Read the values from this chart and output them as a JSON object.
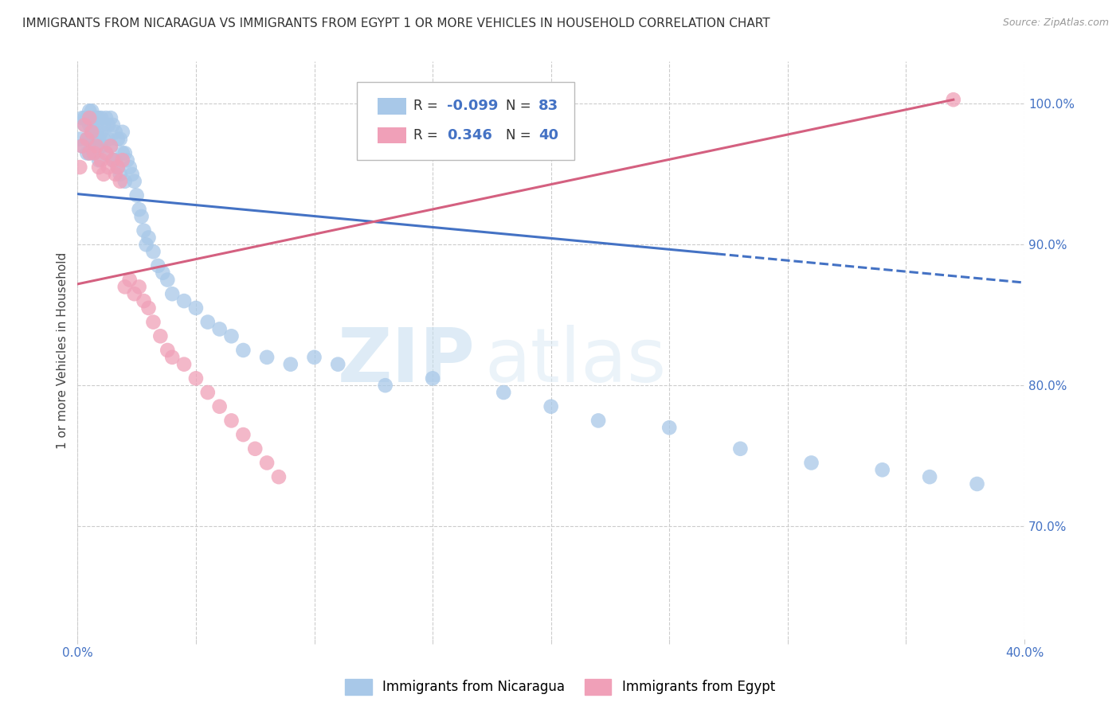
{
  "title": "IMMIGRANTS FROM NICARAGUA VS IMMIGRANTS FROM EGYPT 1 OR MORE VEHICLES IN HOUSEHOLD CORRELATION CHART",
  "source": "Source: ZipAtlas.com",
  "ylabel": "1 or more Vehicles in Household",
  "xlim": [
    0.0,
    0.4
  ],
  "ylim": [
    0.62,
    1.03
  ],
  "ytick_vals": [
    0.7,
    0.8,
    0.9,
    1.0
  ],
  "yticklabels": [
    "70.0%",
    "80.0%",
    "90.0%",
    "100.0%"
  ],
  "xtick_vals": [
    0.0,
    0.05,
    0.1,
    0.15,
    0.2,
    0.25,
    0.3,
    0.35,
    0.4
  ],
  "xticklabels": [
    "0.0%",
    "",
    "",
    "",
    "",
    "",
    "",
    "",
    "40.0%"
  ],
  "nicaragua_R": -0.099,
  "nicaragua_N": 83,
  "egypt_R": 0.346,
  "egypt_N": 40,
  "nicaragua_color": "#a8c8e8",
  "egypt_color": "#f0a0b8",
  "nicaragua_line_color": "#4472c4",
  "egypt_line_color": "#d46080",
  "legend_label_nicaragua": "Immigrants from Nicaragua",
  "legend_label_egypt": "Immigrants from Egypt",
  "watermark_zip": "ZIP",
  "watermark_atlas": "atlas",
  "nicaragua_x": [
    0.001,
    0.002,
    0.002,
    0.003,
    0.003,
    0.004,
    0.004,
    0.004,
    0.005,
    0.005,
    0.005,
    0.005,
    0.006,
    0.006,
    0.006,
    0.007,
    0.007,
    0.007,
    0.008,
    0.008,
    0.008,
    0.009,
    0.009,
    0.009,
    0.01,
    0.01,
    0.01,
    0.011,
    0.011,
    0.012,
    0.012,
    0.013,
    0.013,
    0.014,
    0.014,
    0.015,
    0.015,
    0.016,
    0.016,
    0.017,
    0.017,
    0.018,
    0.018,
    0.019,
    0.019,
    0.02,
    0.02,
    0.021,
    0.022,
    0.023,
    0.024,
    0.025,
    0.026,
    0.027,
    0.028,
    0.029,
    0.03,
    0.032,
    0.034,
    0.036,
    0.038,
    0.04,
    0.045,
    0.05,
    0.055,
    0.06,
    0.065,
    0.07,
    0.08,
    0.09,
    0.1,
    0.11,
    0.13,
    0.15,
    0.18,
    0.2,
    0.22,
    0.25,
    0.28,
    0.31,
    0.34,
    0.36,
    0.38
  ],
  "nicaragua_y": [
    0.975,
    0.99,
    0.97,
    0.99,
    0.985,
    0.99,
    0.975,
    0.965,
    0.995,
    0.985,
    0.975,
    0.965,
    0.995,
    0.985,
    0.975,
    0.99,
    0.98,
    0.965,
    0.99,
    0.98,
    0.97,
    0.99,
    0.975,
    0.96,
    0.99,
    0.98,
    0.97,
    0.985,
    0.975,
    0.99,
    0.965,
    0.985,
    0.975,
    0.99,
    0.97,
    0.985,
    0.96,
    0.98,
    0.96,
    0.975,
    0.955,
    0.975,
    0.95,
    0.98,
    0.965,
    0.965,
    0.945,
    0.96,
    0.955,
    0.95,
    0.945,
    0.935,
    0.925,
    0.92,
    0.91,
    0.9,
    0.905,
    0.895,
    0.885,
    0.88,
    0.875,
    0.865,
    0.86,
    0.855,
    0.845,
    0.84,
    0.835,
    0.825,
    0.82,
    0.815,
    0.82,
    0.815,
    0.8,
    0.805,
    0.795,
    0.785,
    0.775,
    0.77,
    0.755,
    0.745,
    0.74,
    0.735,
    0.73
  ],
  "egypt_x": [
    0.001,
    0.002,
    0.003,
    0.004,
    0.005,
    0.005,
    0.006,
    0.007,
    0.008,
    0.009,
    0.01,
    0.011,
    0.012,
    0.013,
    0.014,
    0.015,
    0.016,
    0.017,
    0.018,
    0.019,
    0.02,
    0.022,
    0.024,
    0.026,
    0.028,
    0.03,
    0.032,
    0.035,
    0.038,
    0.04,
    0.045,
    0.05,
    0.055,
    0.06,
    0.065,
    0.07,
    0.075,
    0.08,
    0.085,
    0.37
  ],
  "egypt_y": [
    0.955,
    0.97,
    0.985,
    0.975,
    0.99,
    0.965,
    0.98,
    0.965,
    0.97,
    0.955,
    0.96,
    0.95,
    0.965,
    0.955,
    0.97,
    0.96,
    0.95,
    0.955,
    0.945,
    0.96,
    0.87,
    0.875,
    0.865,
    0.87,
    0.86,
    0.855,
    0.845,
    0.835,
    0.825,
    0.82,
    0.815,
    0.805,
    0.795,
    0.785,
    0.775,
    0.765,
    0.755,
    0.745,
    0.735,
    1.003
  ],
  "nic_line_x0": 0.0,
  "nic_line_x_solid_end": 0.27,
  "nic_line_x1": 0.4,
  "nic_line_y0": 0.936,
  "nic_line_y1": 0.873,
  "egy_line_x0": 0.0,
  "egy_line_x1": 0.37,
  "egy_line_y0": 0.872,
  "egy_line_y1": 1.003
}
